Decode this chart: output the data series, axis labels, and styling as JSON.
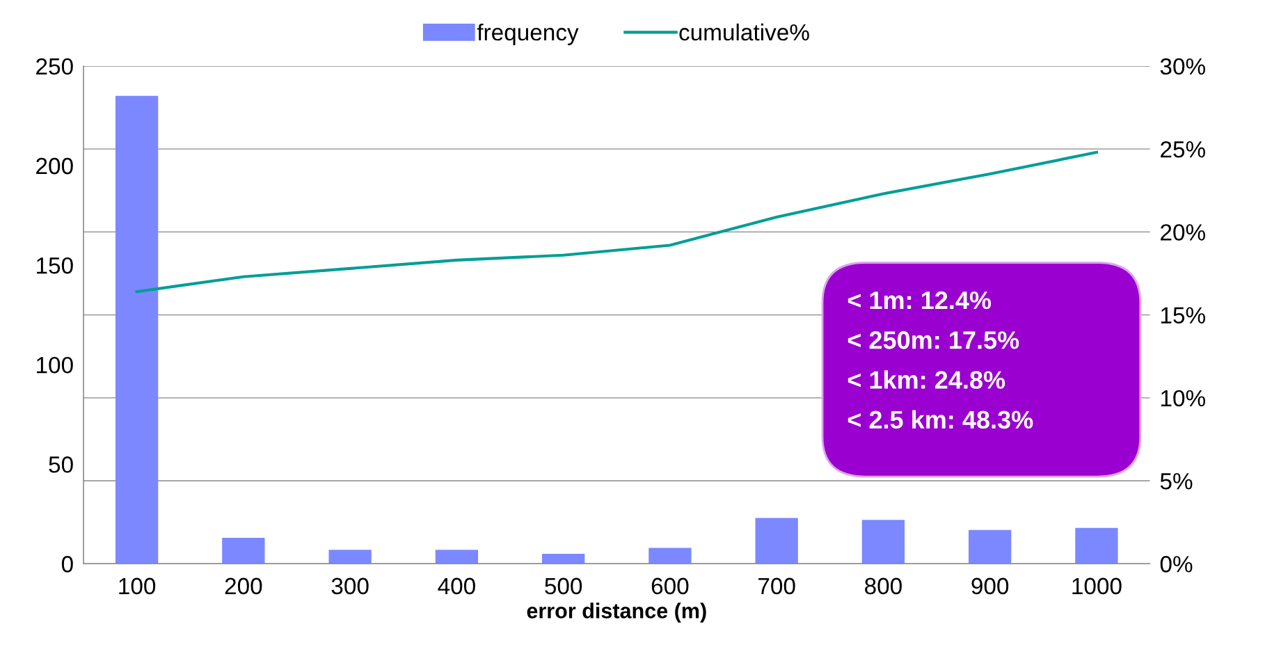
{
  "chart_data": {
    "type": "bar",
    "xlabel": "error distance (m)",
    "categories": [
      "100",
      "200",
      "300",
      "400",
      "500",
      "600",
      "700",
      "800",
      "900",
      "1000"
    ],
    "series": [
      {
        "name": "frequency",
        "color": "#7b88ff",
        "values": [
          235,
          13,
          7,
          7,
          5,
          8,
          23,
          22,
          17,
          18
        ]
      },
      {
        "name": "cumulative%",
        "type": "line",
        "axis": "y2",
        "color": "#009e96",
        "values": [
          16.4,
          17.3,
          17.8,
          18.3,
          18.6,
          19.2,
          20.9,
          22.3,
          23.5,
          24.8
        ]
      }
    ],
    "ylim": [
      0,
      250
    ],
    "yticks": [
      0,
      50,
      100,
      150,
      200,
      250
    ],
    "y2lim": [
      0,
      30
    ],
    "y2ticks": [
      {
        "value": 0,
        "label": "0%"
      },
      {
        "value": 5,
        "label": "5%"
      },
      {
        "value": 10,
        "label": "10%"
      },
      {
        "value": 15,
        "label": "15%"
      },
      {
        "value": 20,
        "label": "20%"
      },
      {
        "value": 25,
        "label": "25%"
      },
      {
        "value": 30,
        "label": "30%"
      }
    ],
    "grid": "y2",
    "legend": "top",
    "marker": "none",
    "line_style": "solid",
    "annotations": [
      "< 1m: 12.4%",
      "< 250m: 17.5%",
      "< 1km: 24.8%",
      "< 2.5 km: 48.3%"
    ]
  }
}
